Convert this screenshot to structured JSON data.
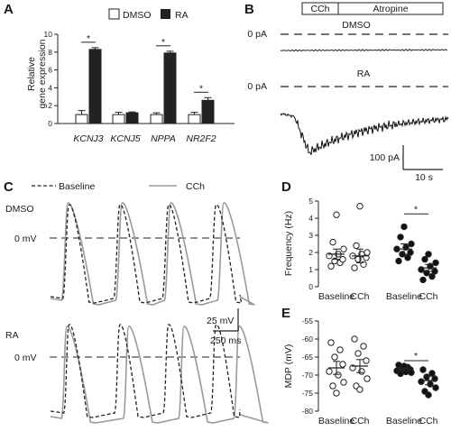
{
  "panels": {
    "a": "A",
    "b": "B",
    "c": "C",
    "d": "D",
    "e": "E"
  },
  "colors": {
    "dmso": "#ffffff",
    "ra": "#222222",
    "trace_ra": "#111111",
    "baseline": "#222222",
    "cch": "#9a9a9a"
  },
  "chart_data": [
    {
      "type": "bar",
      "panel": "A",
      "categories": [
        "KCNJ3",
        "KCNJ5",
        "NPPA",
        "NR2F2"
      ],
      "series": [
        {
          "name": "DMSO",
          "values": [
            1.0,
            1.0,
            1.0,
            1.0
          ],
          "errors": [
            0.45,
            0.25,
            0.2,
            0.25
          ]
        },
        {
          "name": "RA",
          "values": [
            8.3,
            1.2,
            7.9,
            2.6
          ],
          "errors": [
            0.2,
            0.1,
            0.2,
            0.3
          ]
        }
      ],
      "ylabel": [
        "Relative",
        "gene expression"
      ],
      "ylim": [
        0,
        10
      ],
      "yticks": [
        "0",
        "2",
        "4",
        "6",
        "8",
        "10"
      ],
      "significance": [
        "*",
        "*",
        "*"
      ],
      "legend": "top"
    },
    {
      "type": "line",
      "panel": "B",
      "protocol": [
        "CCh",
        "Atropine"
      ],
      "traces": [
        {
          "name": "DMSO",
          "baseline_label": "0 pA"
        },
        {
          "name": "RA",
          "baseline_label": "0 pA"
        }
      ],
      "scale_bar": {
        "y": "100 pA",
        "x": "10 s"
      }
    },
    {
      "type": "line",
      "panel": "C",
      "legend": [
        "Baseline",
        "CCh"
      ],
      "conditions": [
        {
          "name": "DMSO",
          "zero_label": "0 mV",
          "baseline_peaks_ms": [
            60,
            290,
            510,
            725
          ],
          "cch_peaks_ms": [
            55,
            300,
            520,
            760
          ]
        },
        {
          "name": "RA",
          "zero_label": "0 mV",
          "baseline_peaks_ms": [
            60,
            290,
            510,
            725
          ],
          "cch_peaks_ms": [
            50,
            330,
            580,
            830
          ]
        }
      ],
      "scale_bar": {
        "y": "25 mV",
        "x": "250 ms"
      }
    },
    {
      "type": "scatter",
      "panel": "D",
      "ylabel": "Frequency (Hz)",
      "ylim": [
        0,
        5
      ],
      "yticks": [
        "0",
        "1",
        "2",
        "3",
        "4",
        "5"
      ],
      "categories": [
        "Baseline",
        "CCh",
        "Baseline",
        "CCh"
      ],
      "groups": [
        {
          "name": "DMSO",
          "filled": false,
          "mean": [
            1.9,
            1.8
          ],
          "sem": [
            0.3,
            0.4
          ],
          "points": [
            [
              1.2,
              1.4,
              1.5,
              1.6,
              1.8,
              1.9,
              2.2,
              2.6,
              4.2
            ],
            [
              1.1,
              1.3,
              1.6,
              1.7,
              1.8,
              1.9,
              2.0,
              2.4,
              4.7
            ]
          ]
        },
        {
          "name": "RA",
          "filled": true,
          "mean": [
            2.2,
            1.1
          ],
          "sem": [
            0.3,
            0.2
          ],
          "points": [
            [
              1.5,
              1.7,
              1.9,
              2.0,
              2.2,
              2.3,
              2.5,
              2.9,
              3.5
            ],
            [
              0.4,
              0.6,
              0.8,
              0.9,
              1.0,
              1.2,
              1.4,
              1.6,
              1.9
            ]
          ]
        }
      ],
      "significance": "*"
    },
    {
      "type": "scatter",
      "panel": "E",
      "ylabel": "MDP (mV)",
      "ylim": [
        -80,
        -55
      ],
      "yticks": [
        "-55",
        "-60",
        "-65",
        "-70",
        "-75",
        "-80"
      ],
      "categories": [
        "Baseline",
        "CCh",
        "Baseline",
        "CCh"
      ],
      "groups": [
        {
          "name": "DMSO",
          "filled": false,
          "mean": [
            -68,
            -67.5
          ],
          "sem": [
            1.8,
            1.8
          ],
          "points": [
            [
              -61,
              -63,
              -65,
              -67,
              -69,
              -70,
              -72,
              -73,
              -75
            ],
            [
              -60,
              -62,
              -64,
              -66,
              -68,
              -69,
              -71,
              -73,
              -74
            ]
          ]
        },
        {
          "name": "RA",
          "filled": true,
          "mean": [
            -68.5,
            -71.5
          ],
          "sem": [
            0.5,
            1.2
          ],
          "points": [
            [
              -67.2,
              -67.8,
              -68.2,
              -68.5,
              -68.8,
              -69.1,
              -69.3,
              -69.6,
              -67.5
            ],
            [
              -68.5,
              -69.5,
              -70.5,
              -71,
              -71.8,
              -72.5,
              -73.5,
              -74.5,
              -75.5
            ]
          ]
        }
      ],
      "significance": "*"
    }
  ]
}
